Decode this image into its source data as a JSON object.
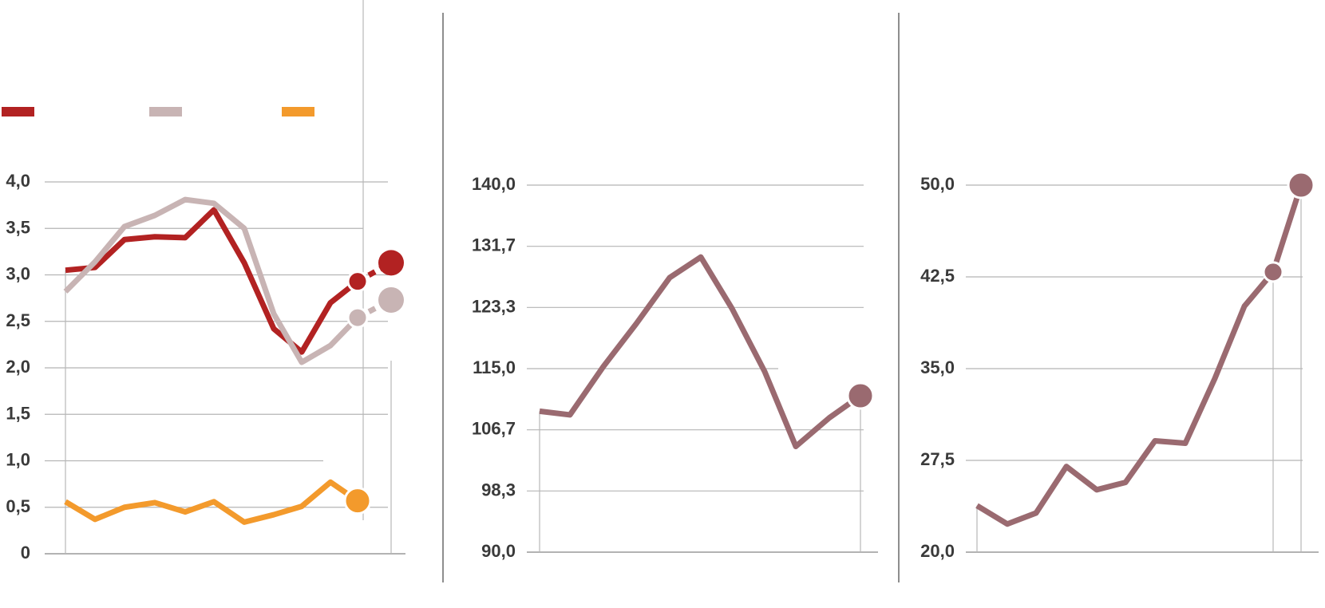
{
  "chart_data": [
    {
      "type": "line",
      "yticks": [
        "4,0",
        "3,5",
        "3,0",
        "2,5",
        "2,0",
        "1,5",
        "1,0",
        "0,5",
        "0"
      ],
      "ylim": [
        0,
        4
      ],
      "grid": true,
      "legend": "top-left",
      "series": [
        {
          "color": "#b22222",
          "values": [
            3.05,
            3.08,
            3.38,
            3.41,
            3.4,
            3.7,
            3.13,
            2.42,
            2.17,
            2.7,
            2.93
          ],
          "projection": [
            2.93,
            3.13
          ]
        },
        {
          "color": "#c8b4b4",
          "values": [
            2.82,
            3.14,
            3.52,
            3.64,
            3.81,
            3.77,
            3.5,
            2.58,
            2.06,
            2.24,
            2.54
          ],
          "projection": [
            2.54,
            2.73
          ]
        },
        {
          "color": "#f39a2c",
          "values": [
            0.56,
            0.37,
            0.5,
            0.55,
            0.45,
            0.56,
            0.34,
            0.42,
            0.51,
            0.77,
            0.57
          ]
        }
      ]
    },
    {
      "type": "line",
      "yticks": [
        "140,0",
        "131,7",
        "123,3",
        "115,0",
        "106,7",
        "98,3",
        "90,0"
      ],
      "ylim": [
        90,
        140
      ],
      "grid": true,
      "series": [
        {
          "color": "#9a6a70",
          "values": [
            109.2,
            108.7,
            115.3,
            121.1,
            127.4,
            130.2,
            123.2,
            114.6,
            104.4,
            108.3,
            111.3
          ]
        }
      ]
    },
    {
      "type": "line",
      "yticks": [
        "50,0",
        "42,5",
        "35,0",
        "27,5",
        "20,0"
      ],
      "ylim": [
        20,
        50
      ],
      "grid": true,
      "series": [
        {
          "color": "#9a6a70",
          "values": [
            23.8,
            22.3,
            23.2,
            27.0,
            25.1,
            25.7,
            29.1,
            28.9,
            34.2,
            40.1,
            42.9,
            50.0
          ]
        }
      ]
    }
  ]
}
